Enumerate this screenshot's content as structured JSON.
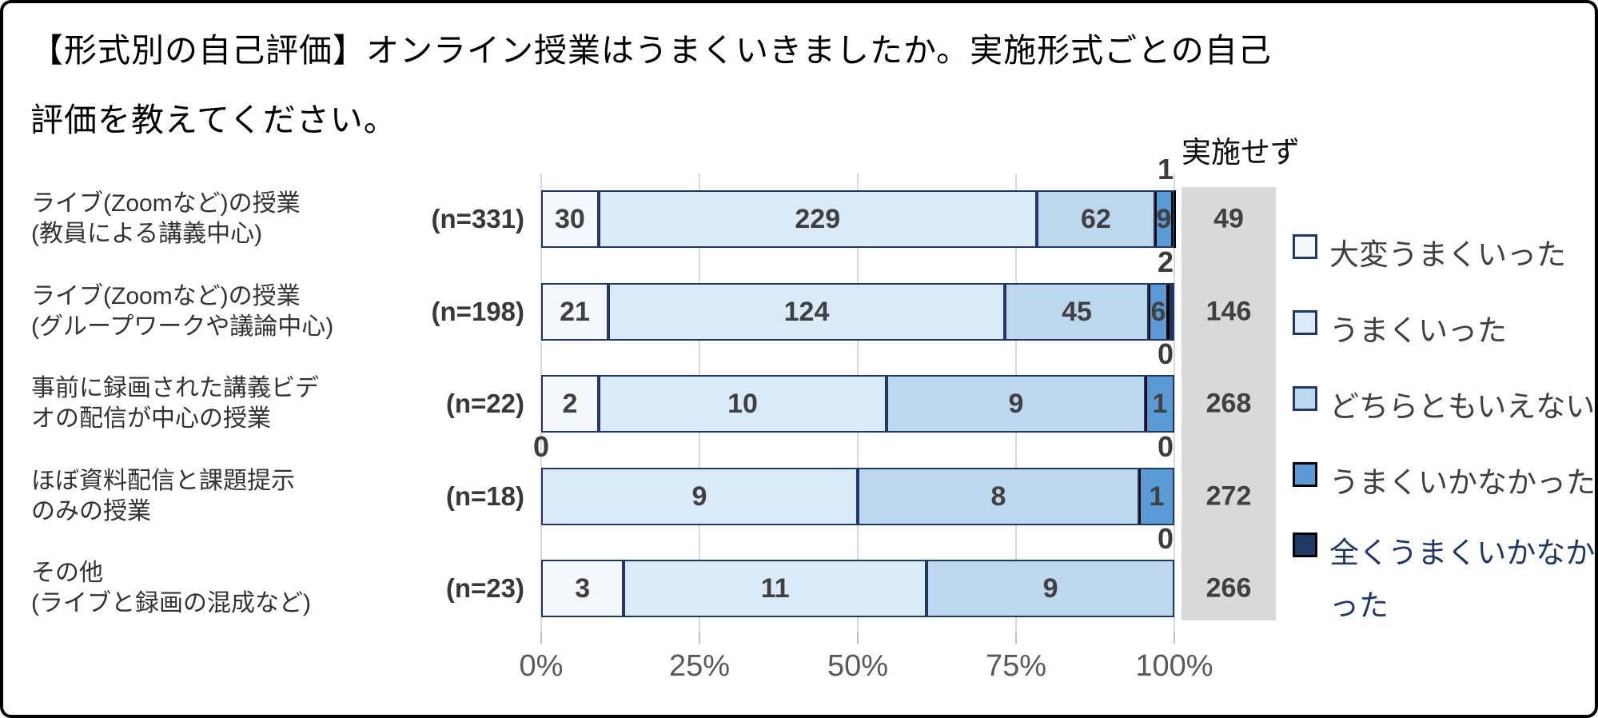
{
  "title": "【形式別の自己評価】オンライン授業はうまくいきましたか。実施形式ごとの自己評価を教えてください。",
  "not_implemented_header": "実施せず",
  "colors": {
    "series_fills": [
      "#F2F8FC",
      "#DAEAF6",
      "#BDD7EE",
      "#5B9BD5",
      "#1F3864"
    ],
    "series_borders": [
      "#1F3864",
      "#1F3864",
      "#1F3864",
      "#000000",
      "#000000"
    ],
    "bar_frame": "#1F3864",
    "grid": "#D9D9D9",
    "tick": "#BFBFBF",
    "not_implemented_bg": "#D9D9D9",
    "value_label": "#404040",
    "axis_label": "#595959",
    "legend_text": "#404040",
    "legend_last_text": "#1F3864",
    "frame": "#000000"
  },
  "legend": {
    "items": [
      {
        "label": "大変うまくいった"
      },
      {
        "label": "うまくいった"
      },
      {
        "label": "どちらともいえない"
      },
      {
        "label": "うまくいかなかった"
      },
      {
        "label": "全くうまくいかなかった"
      }
    ]
  },
  "x_axis": {
    "ticks": [
      "0%",
      "25%",
      "50%",
      "75%",
      "100%"
    ],
    "range": [
      0,
      100
    ],
    "grid": true
  },
  "chart_data": {
    "type": "bar",
    "stacked": true,
    "orientation": "horizontal",
    "percent_axis": true,
    "title": "【形式別の自己評価】オンライン授業はうまくいきましたか。実施形式ごとの自己評価を教えてください。",
    "series_names": [
      "大変うまくいった",
      "うまくいった",
      "どちらともいえない",
      "うまくいかなかった",
      "全くうまくいかなかった"
    ],
    "legend_position": "right",
    "xlabel": "",
    "ylabel": "",
    "xlim": [
      0,
      100
    ],
    "categories": [
      "ライブ(Zoomなど)の授業(教員による講義中心)",
      "ライブ(Zoomなど)の授業(グループワークや議論中心)",
      "事前に録画された講義ビデオの配信が中心の授業",
      "ほぼ資料配信と課題提示のみの授業",
      "その他(ライブと録画の混成など)"
    ],
    "rows": [
      {
        "label_lines": [
          "ライブ(Zoomなど)の授業",
          "(教員による講義中心)"
        ],
        "n_label": "(n=331)",
        "n": 331,
        "values": [
          30,
          229,
          62,
          9,
          1
        ],
        "not_implemented": 49,
        "outside_labels": [
          {
            "text": "1",
            "side": "right"
          }
        ]
      },
      {
        "label_lines": [
          "ライブ(Zoomなど)の授業",
          "(グループワークや議論中心)"
        ],
        "n_label": "(n=198)",
        "n": 198,
        "values": [
          21,
          124,
          45,
          6,
          2
        ],
        "not_implemented": 146,
        "outside_labels": [
          {
            "text": "2",
            "side": "right"
          }
        ]
      },
      {
        "label_lines": [
          "事前に録画された講義ビデ",
          "オの配信が中心の授業"
        ],
        "n_label": "(n=22)",
        "n": 22,
        "values": [
          2,
          10,
          9,
          1,
          0
        ],
        "not_implemented": 268,
        "outside_labels": [
          {
            "text": "0",
            "side": "right"
          }
        ]
      },
      {
        "label_lines": [
          "ほぼ資料配信と課題提示",
          "のみの授業"
        ],
        "n_label": "(n=18)",
        "n": 18,
        "values": [
          0,
          9,
          8,
          1,
          0
        ],
        "not_implemented": 272,
        "outside_labels": [
          {
            "text": "0",
            "side": "left"
          },
          {
            "text": "0",
            "side": "right"
          }
        ]
      },
      {
        "label_lines": [
          "その他",
          "(ライブと録画の混成など)"
        ],
        "n_label": "(n=23)",
        "n": 23,
        "values": [
          3,
          11,
          9,
          0,
          0
        ],
        "not_implemented": 266,
        "outside_labels": [
          {
            "text": "0",
            "side": "right"
          }
        ]
      }
    ]
  }
}
